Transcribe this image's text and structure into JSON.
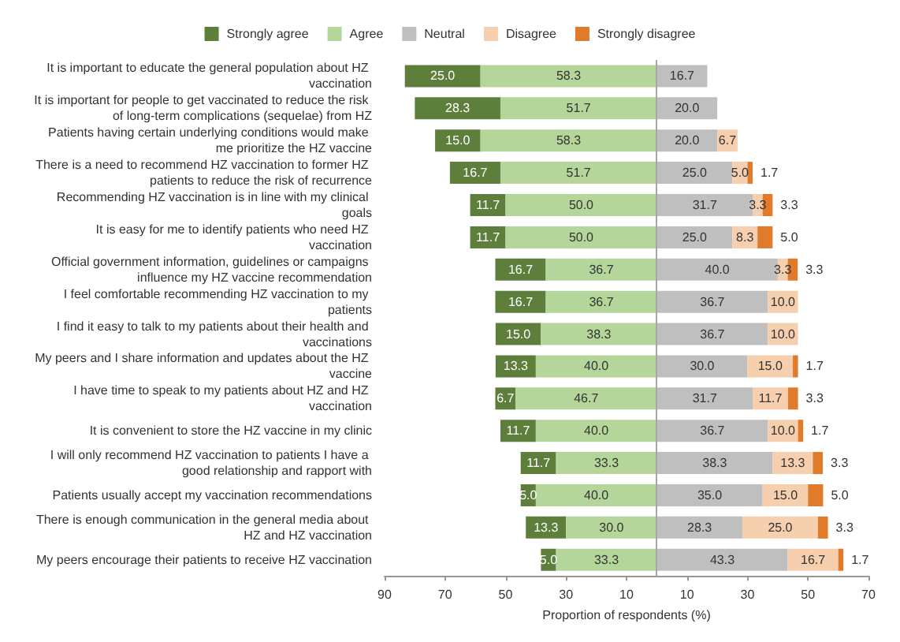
{
  "chart_data": {
    "type": "bar",
    "orientation": "horizontal",
    "legend": "top",
    "grid": false,
    "xlabel": "Proportion of respondents (%)",
    "categories": [
      "It is important to educate the general population about HZ vaccination",
      "It is important for people to get vaccinated to reduce the risk of long-term complications (sequelae) from HZ",
      "Patients having certain underlying conditions would make me prioritize the HZ vaccine",
      "There is a need to recommend HZ vaccination to former HZ patients to reduce the risk of recurrence",
      "Recommending HZ vaccination is in line with my clinical goals",
      "It is easy for me to identify patients who need HZ vaccination",
      "Official government information, guidelines or campaigns influence my HZ vaccine recommendation",
      "I feel comfortable recommending HZ vaccination to my patients",
      "I find it easy to talk to my patients about their health and vaccinations",
      "My peers and I share information and updates about the HZ vaccine",
      "I have time to speak to my patients about HZ and HZ vaccination",
      "It is convenient to store the HZ vaccine in my clinic",
      "I will only recommend HZ vaccination to patients I have a good relationship and rapport with",
      "Patients usually accept my vaccination recommendations",
      "There is enough communication in the general media about HZ and HZ vaccination",
      "My peers encourage their patients to receive HZ vaccination"
    ],
    "xlim": [
      -90,
      70
    ],
    "xticks": [
      {
        "value": -90,
        "label": "90"
      },
      {
        "value": -70,
        "label": "70"
      },
      {
        "value": -50,
        "label": "50"
      },
      {
        "value": -30,
        "label": "30"
      },
      {
        "value": -10,
        "label": "10"
      },
      {
        "value": 10,
        "label": "10"
      },
      {
        "value": 30,
        "label": "30"
      },
      {
        "value": 50,
        "label": "50"
      },
      {
        "value": 70,
        "label": "70"
      }
    ],
    "ref_lines": [
      {
        "axis": "x",
        "value": 0,
        "color": "#a6a6a6"
      }
    ],
    "series": [
      {
        "name": "Strongly agree",
        "color": "#5e7f3c",
        "values": [
          25.0,
          28.3,
          15.0,
          16.7,
          11.7,
          11.7,
          16.7,
          16.7,
          15.0,
          13.3,
          6.7,
          11.7,
          11.7,
          5.0,
          13.3,
          5.0
        ],
        "base": [
          -83.3,
          -80.0,
          -73.3,
          -68.4,
          -61.7,
          -61.7,
          -53.4,
          -53.4,
          -53.3,
          -53.3,
          -53.4,
          -51.7,
          -45.0,
          -45.0,
          -43.3,
          -38.3
        ],
        "value_labels": [
          "25.0",
          "28.3",
          "15.0",
          "16.7",
          "11.7",
          "11.7",
          "16.7",
          "16.7",
          "15.0",
          "13.3",
          "6.7",
          "11.7",
          "11.7",
          "5.0",
          "13.3",
          "5.0"
        ]
      },
      {
        "name": "Agree",
        "color": "#b5d69a",
        "values": [
          58.3,
          51.7,
          58.3,
          51.7,
          50.0,
          50.0,
          36.7,
          36.7,
          38.3,
          40.0,
          46.7,
          40.0,
          33.3,
          40.0,
          30.0,
          33.3
        ],
        "base": [
          -58.3,
          -51.7,
          -58.3,
          -51.7,
          -50.0,
          -50.0,
          -36.7,
          -36.7,
          -38.3,
          -40.0,
          -46.7,
          -40.0,
          -33.3,
          -40.0,
          -30.0,
          -33.3
        ],
        "value_labels": [
          "58.3",
          "51.7",
          "58.3",
          "51.7",
          "50.0",
          "50.0",
          "36.7",
          "36.7",
          "38.3",
          "40.0",
          "46.7",
          "40.0",
          "33.3",
          "40.0",
          "30.0",
          "33.3"
        ]
      },
      {
        "name": "Neutral",
        "color": "#bfbfbf",
        "values": [
          16.7,
          20.0,
          20.0,
          25.0,
          31.7,
          25.0,
          40.0,
          36.7,
          36.7,
          30.0,
          31.7,
          36.7,
          38.3,
          35.0,
          28.3,
          43.3
        ],
        "base": [
          0,
          0,
          0,
          0,
          0,
          0,
          0,
          0,
          0,
          0,
          0,
          0,
          0,
          0,
          0,
          0
        ],
        "value_labels": [
          "16.7",
          "20.0",
          "20.0",
          "25.0",
          "31.7",
          "25.0",
          "40.0",
          "36.7",
          "36.7",
          "30.0",
          "31.7",
          "36.7",
          "38.3",
          "35.0",
          "28.3",
          "43.3"
        ]
      },
      {
        "name": "Disagree",
        "color": "#f6cfae",
        "values": [
          null,
          null,
          6.7,
          5.0,
          3.3,
          8.3,
          3.3,
          10.0,
          10.0,
          15.0,
          11.7,
          10.0,
          13.3,
          15.0,
          25.0,
          16.7
        ],
        "base": [
          null,
          null,
          20.0,
          25.0,
          31.7,
          25.0,
          40.0,
          36.7,
          36.7,
          30.0,
          31.7,
          36.7,
          38.3,
          35.0,
          28.3,
          43.3
        ],
        "value_labels": [
          null,
          null,
          "6.7",
          "5.0",
          "3.3",
          "8.3",
          "3.3",
          "10.0",
          "10.0",
          "15.0",
          "11.7",
          "10.0",
          "13.3",
          "15.0",
          "25.0",
          "16.7"
        ]
      },
      {
        "name": "Strongly disagree",
        "color": "#e07b2c",
        "values": [
          null,
          null,
          null,
          1.7,
          3.3,
          5.0,
          3.3,
          null,
          null,
          1.7,
          3.3,
          1.7,
          3.3,
          5.0,
          3.3,
          1.7
        ],
        "base": [
          null,
          null,
          null,
          30.0,
          35.0,
          33.3,
          43.3,
          null,
          null,
          45.0,
          43.4,
          46.7,
          51.6,
          50.0,
          53.3,
          60.0
        ],
        "value_labels": [
          null,
          null,
          null,
          "1.7",
          "3.3",
          "5.0",
          "3.3",
          null,
          null,
          "1.7",
          "3.3",
          "1.7",
          "3.3",
          "5.0",
          "3.3",
          "1.7"
        ]
      }
    ]
  }
}
